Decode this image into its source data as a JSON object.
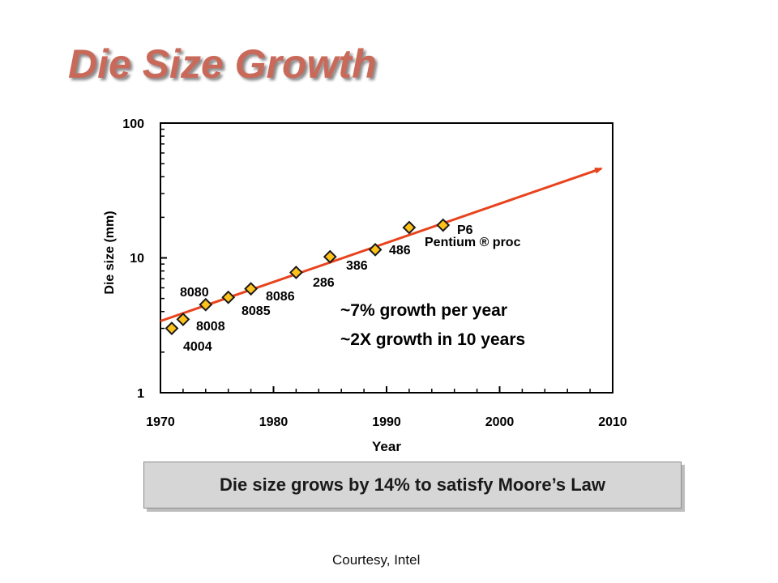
{
  "slide": {
    "title": "Die Size Growth",
    "banner_text": "Die size grows by 14% to satisfy Moore’s Law",
    "credit": "Courtesy, Intel"
  },
  "colors": {
    "title": "#c9695a",
    "trend_line": "#e8431c",
    "marker_fill": "#ffc21a",
    "marker_stroke": "#1a1a1a",
    "axis": "#000000"
  },
  "chart_data": {
    "type": "scatter",
    "xlabel": "Year",
    "ylabel": "Die size (mm)",
    "xlim": [
      1970,
      2010
    ],
    "ylim": [
      1,
      100
    ],
    "yscale": "log",
    "x_ticks": [
      "1970",
      "1980",
      "1990",
      "2000",
      "2010"
    ],
    "y_ticks": [
      "1",
      "10",
      "100"
    ],
    "grid": false,
    "series": [
      {
        "points": [
          {
            "label": "4004",
            "x": 1971,
            "y": 3.0
          },
          {
            "label": "8008",
            "x": 1972,
            "y": 3.5
          },
          {
            "label": "8080",
            "x": 1974,
            "y": 4.5
          },
          {
            "label": "8085",
            "x": 1976,
            "y": 5.1
          },
          {
            "label": "8086",
            "x": 1978,
            "y": 5.9
          },
          {
            "label": "286",
            "x": 1982,
            "y": 7.8
          },
          {
            "label": "386",
            "x": 1985,
            "y": 10.2
          },
          {
            "label": "486",
            "x": 1989,
            "y": 11.5
          },
          {
            "label": "Pentium ® proc",
            "x": 1992,
            "y": 16.8
          },
          {
            "label": "P6",
            "x": 1995,
            "y": 17.5
          }
        ]
      }
    ],
    "trend": {
      "x": [
        1970,
        2009
      ],
      "y": [
        3.4,
        46
      ]
    },
    "annotations": [
      "~7% growth per year",
      "~2X growth in 10 years"
    ]
  }
}
